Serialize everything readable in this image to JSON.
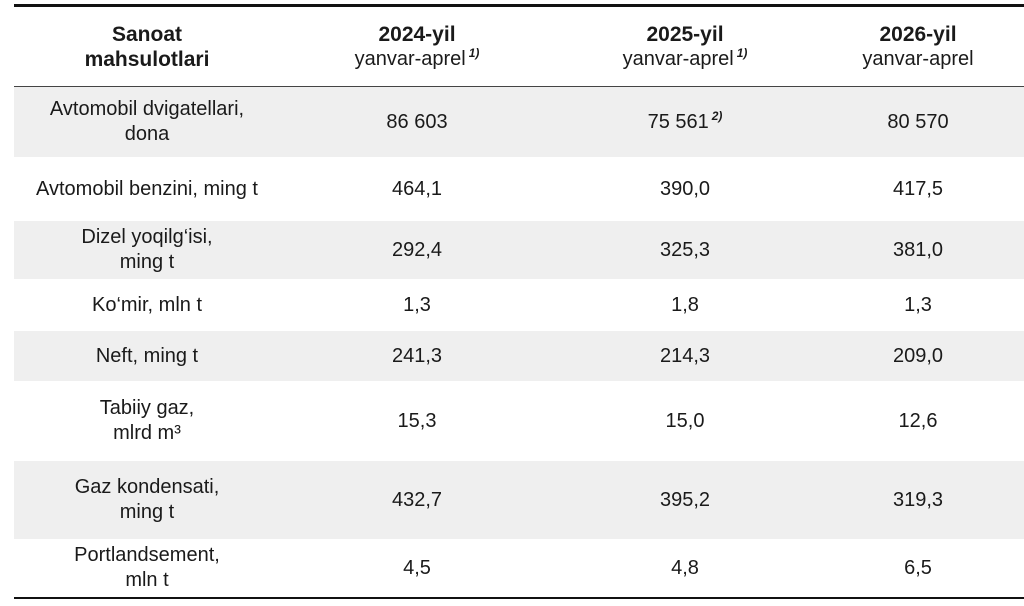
{
  "header": {
    "col0_line1": "Sanoat",
    "col0_line2": "mahsulotlari",
    "col1_year": "2024-yil",
    "col1_period": "yanvar-aprel",
    "col1_note": "1)",
    "col2_year": "2025-yil",
    "col2_period": "yanvar-aprel",
    "col2_note": "1)",
    "col3_year": "2026-yil",
    "col3_period": "yanvar-aprel"
  },
  "rows": [
    {
      "name_line1": "Avtomobil dvigatellari,",
      "name_line2": "dona",
      "v2024": "86 603",
      "v2025": "75 561",
      "v2025_note": "2)",
      "v2026": "80 570"
    },
    {
      "name_line1": "Avtomobil benzini, ming t",
      "name_line2": "",
      "v2024": "464,1",
      "v2025": "390,0",
      "v2025_note": "",
      "v2026": "417,5"
    },
    {
      "name_line1": "Dizel yoqilg‘isi,",
      "name_line2": "ming t",
      "v2024": "292,4",
      "v2025": "325,3",
      "v2025_note": "",
      "v2026": "381,0"
    },
    {
      "name_line1": "Ko‘mir, mln t",
      "name_line2": "",
      "v2024": "1,3",
      "v2025": "1,8",
      "v2025_note": "",
      "v2026": "1,3"
    },
    {
      "name_line1": "Neft, ming t",
      "name_line2": "",
      "v2024": "241,3",
      "v2025": "214,3",
      "v2025_note": "",
      "v2026": "209,0"
    },
    {
      "name_line1": "Tabiiy gaz,",
      "name_line2": "mlrd m³",
      "v2024": "15,3",
      "v2025": "15,0",
      "v2025_note": "",
      "v2026": "12,6"
    },
    {
      "name_line1": "Gaz kondensati,",
      "name_line2": "ming t",
      "v2024": "432,7",
      "v2025": "395,2",
      "v2025_note": "",
      "v2026": "319,3"
    },
    {
      "name_line1": "Portlandsement,",
      "name_line2": "mln t",
      "v2024": "4,5",
      "v2025": "4,8",
      "v2025_note": "",
      "v2026": "6,5"
    }
  ]
}
